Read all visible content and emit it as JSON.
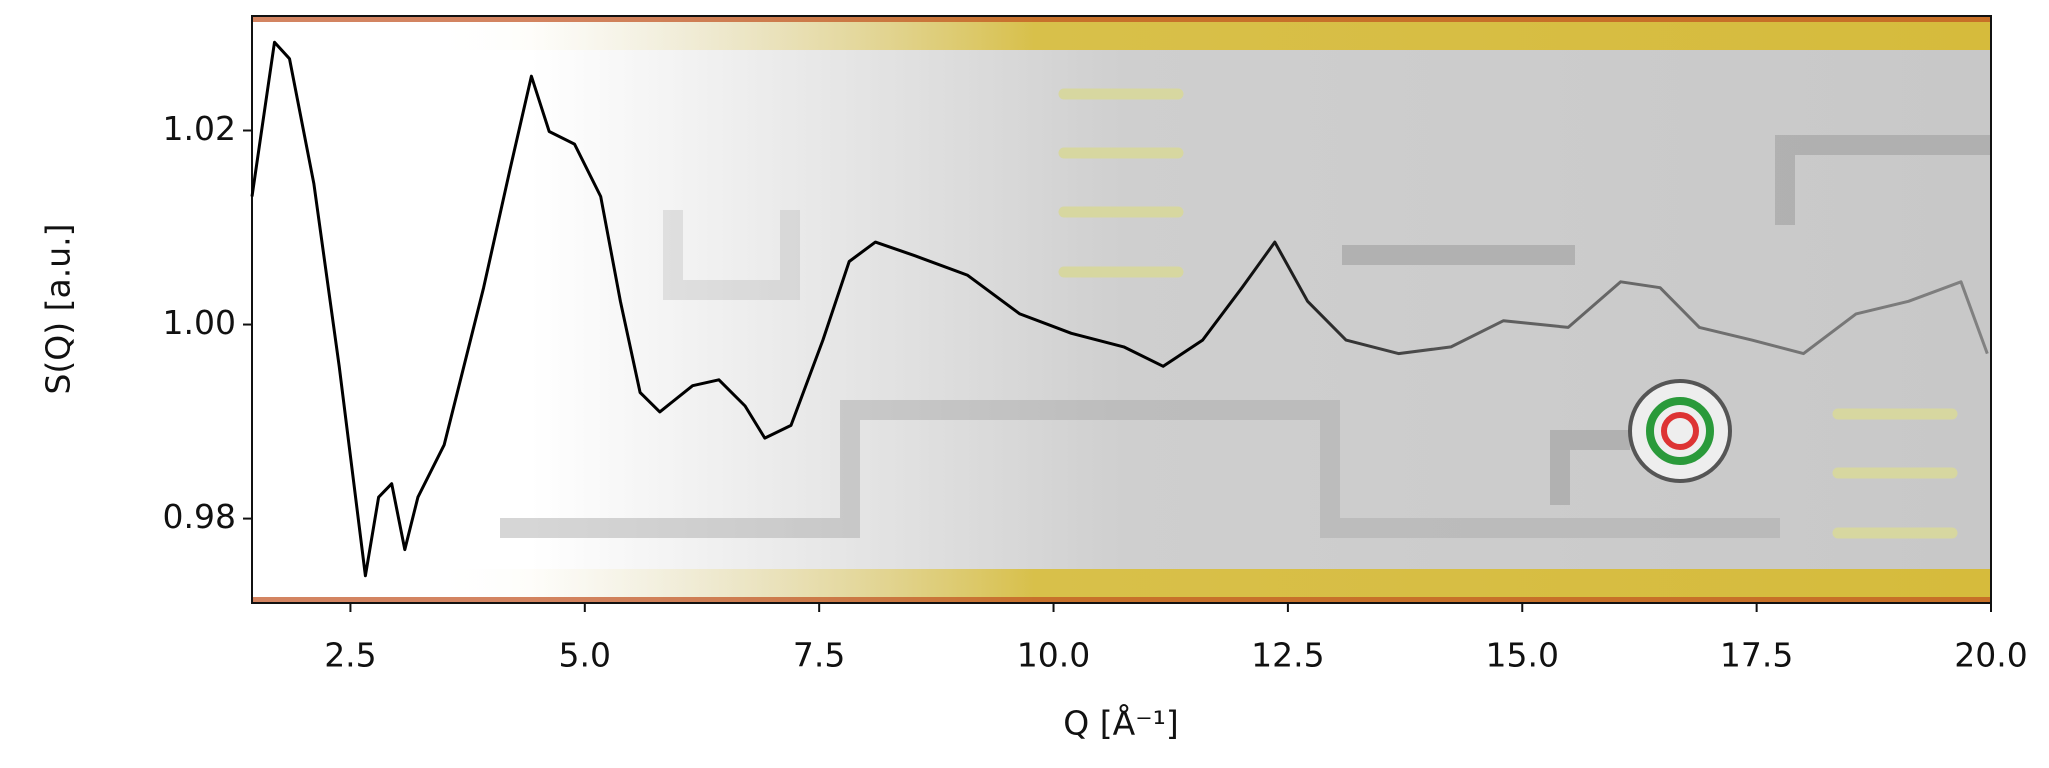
{
  "chart_data": {
    "type": "line",
    "xlabel": "Q [Å⁻¹]",
    "ylabel": "S(Q) [a.u.]",
    "x": [
      1.45,
      1.69,
      1.85,
      2.11,
      2.38,
      2.66,
      2.8,
      2.94,
      3.08,
      3.22,
      3.5,
      3.92,
      4.2,
      4.43,
      4.62,
      4.89,
      5.17,
      5.38,
      5.59,
      5.8,
      6.15,
      6.43,
      6.71,
      6.92,
      7.2,
      7.54,
      7.82,
      8.1,
      8.52,
      9.08,
      9.64,
      10.19,
      10.75,
      11.17,
      11.59,
      12.01,
      12.36,
      12.71,
      13.12,
      13.68,
      14.24,
      14.8,
      15.49,
      16.05,
      16.47,
      16.89,
      17.45,
      18.0,
      18.56,
      19.12,
      19.68,
      19.96
    ],
    "values": [
      1.0132,
      1.0291,
      1.0274,
      1.0145,
      0.9957,
      0.9741,
      0.9822,
      0.9836,
      0.9768,
      0.9822,
      0.9876,
      1.0038,
      1.0159,
      1.0256,
      1.0199,
      1.0186,
      1.0132,
      1.0024,
      0.993,
      0.991,
      0.9937,
      0.9943,
      0.9916,
      0.9883,
      0.9896,
      0.9984,
      1.0065,
      1.0085,
      1.0071,
      1.0051,
      1.0011,
      0.9991,
      0.9977,
      0.9957,
      0.9984,
      1.0038,
      1.0085,
      1.0024,
      0.9984,
      0.997,
      0.9977,
      1.0004,
      0.9997,
      1.0044,
      1.0038,
      0.9997,
      0.9984,
      0.997,
      1.0011,
      1.0024,
      1.0044,
      0.997
    ],
    "color": "#000000",
    "xlim": [
      1.45,
      20
    ],
    "ylim": [
      0.9713,
      1.0318
    ],
    "xticks": [
      2.5,
      {
        "value": 5,
        "label": "5.0"
      },
      7.5,
      {
        "value": 10,
        "label": "10.0"
      },
      12.5,
      {
        "value": 15,
        "label": "15.0"
      },
      17.5,
      {
        "value": 20,
        "label": "20.0"
      }
    ],
    "yticks": [
      0.98,
      {
        "value": 1,
        "label": "1.00"
      },
      1.02
    ],
    "grid": false
  }
}
